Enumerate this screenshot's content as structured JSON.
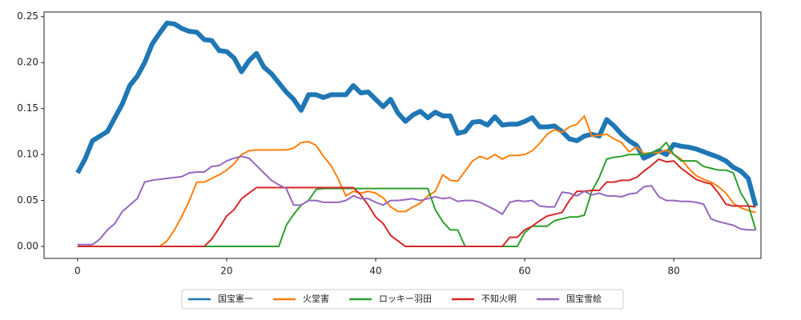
{
  "chart_data": {
    "type": "line",
    "x": [
      0,
      1,
      2,
      3,
      4,
      5,
      6,
      7,
      8,
      9,
      10,
      11,
      12,
      13,
      14,
      15,
      16,
      17,
      18,
      19,
      20,
      21,
      22,
      23,
      24,
      25,
      26,
      27,
      28,
      29,
      30,
      31,
      32,
      33,
      34,
      35,
      36,
      37,
      38,
      39,
      40,
      41,
      42,
      43,
      44,
      45,
      46,
      47,
      48,
      49,
      50,
      51,
      52,
      53,
      54,
      55,
      56,
      57,
      58,
      59,
      60,
      61,
      62,
      63,
      64,
      65,
      66,
      67,
      68,
      69,
      70,
      71,
      72,
      73,
      74,
      75,
      76,
      77,
      78,
      79,
      80,
      81,
      82,
      83,
      84,
      85,
      86,
      87,
      88,
      89,
      90,
      91
    ],
    "series": [
      {
        "name": "国宝憲一",
        "color": "#1f77b4",
        "linewidth": 6,
        "values": [
          0.08,
          0.095,
          0.115,
          0.12,
          0.125,
          0.14,
          0.155,
          0.175,
          0.185,
          0.2,
          0.22,
          0.232,
          0.243,
          0.242,
          0.237,
          0.234,
          0.233,
          0.225,
          0.224,
          0.213,
          0.212,
          0.205,
          0.19,
          0.202,
          0.21,
          0.195,
          0.188,
          0.178,
          0.168,
          0.16,
          0.148,
          0.165,
          0.165,
          0.162,
          0.165,
          0.165,
          0.165,
          0.175,
          0.167,
          0.168,
          0.16,
          0.152,
          0.16,
          0.145,
          0.136,
          0.143,
          0.147,
          0.14,
          0.146,
          0.142,
          0.142,
          0.123,
          0.125,
          0.135,
          0.136,
          0.132,
          0.141,
          0.132,
          0.133,
          0.133,
          0.136,
          0.14,
          0.13,
          0.13,
          0.131,
          0.125,
          0.117,
          0.115,
          0.12,
          0.122,
          0.12,
          0.138,
          0.131,
          0.122,
          0.115,
          0.11,
          0.096,
          0.1,
          0.104,
          0.1,
          0.111,
          0.109,
          0.108,
          0.106,
          0.103,
          0.1,
          0.097,
          0.093,
          0.086,
          0.082,
          0.074,
          0.044
        ]
      },
      {
        "name": "火堂害",
        "color": "#ff7f0e",
        "linewidth": 2,
        "values": [
          0,
          0,
          0,
          0,
          0,
          0,
          0,
          0,
          0,
          0,
          0,
          0,
          0.006,
          0.018,
          0.033,
          0.05,
          0.07,
          0.07,
          0.074,
          0.078,
          0.083,
          0.09,
          0.1,
          0.104,
          0.105,
          0.105,
          0.105,
          0.105,
          0.105,
          0.107,
          0.113,
          0.114,
          0.11,
          0.098,
          0.088,
          0.073,
          0.055,
          0.06,
          0.058,
          0.06,
          0.058,
          0.053,
          0.043,
          0.038,
          0.038,
          0.043,
          0.047,
          0.055,
          0.06,
          0.078,
          0.072,
          0.071,
          0.082,
          0.093,
          0.098,
          0.095,
          0.1,
          0.095,
          0.099,
          0.099,
          0.1,
          0.104,
          0.112,
          0.122,
          0.127,
          0.124,
          0.13,
          0.133,
          0.142,
          0.12,
          0.121,
          0.122,
          0.117,
          0.113,
          0.103,
          0.108,
          0.101,
          0.102,
          0.102,
          0.105,
          0.1,
          0.095,
          0.085,
          0.077,
          0.073,
          0.07,
          0.065,
          0.058,
          0.047,
          0.042,
          0.039,
          0.037
        ]
      },
      {
        "name": "ロッキー羽田",
        "color": "#2ca02c",
        "linewidth": 2,
        "values": [
          0,
          0,
          0,
          0,
          0,
          0,
          0,
          0,
          0,
          0,
          0,
          0,
          0,
          0,
          0,
          0,
          0,
          0,
          0,
          0,
          0,
          0,
          0,
          0,
          0,
          0,
          0,
          0,
          0.023,
          0.035,
          0.045,
          0.05,
          0.062,
          0.063,
          0.063,
          0.063,
          0.063,
          0.063,
          0.063,
          0.063,
          0.063,
          0.063,
          0.063,
          0.063,
          0.063,
          0.063,
          0.063,
          0.063,
          0.04,
          0.027,
          0.018,
          0.018,
          0,
          0,
          0,
          0,
          0,
          0,
          0,
          0,
          0.015,
          0.022,
          0.022,
          0.022,
          0.028,
          0.03,
          0.032,
          0.032,
          0.034,
          0.06,
          0.075,
          0.095,
          0.097,
          0.098,
          0.1,
          0.1,
          0.1,
          0.102,
          0.105,
          0.113,
          0.1,
          0.093,
          0.093,
          0.093,
          0.087,
          0.085,
          0.083,
          0.083,
          0.08,
          0.058,
          0.045,
          0.018
        ]
      },
      {
        "name": "不知火明",
        "color": "#d62728",
        "linewidth": 2,
        "values": [
          0,
          0,
          0,
          0,
          0,
          0,
          0,
          0,
          0,
          0,
          0,
          0,
          0,
          0,
          0,
          0,
          0,
          0,
          0.008,
          0.02,
          0.033,
          0.04,
          0.052,
          0.058,
          0.064,
          0.064,
          0.064,
          0.064,
          0.064,
          0.064,
          0.064,
          0.064,
          0.064,
          0.064,
          0.064,
          0.064,
          0.064,
          0.064,
          0.056,
          0.045,
          0.032,
          0.025,
          0.012,
          0.006,
          0,
          0,
          0,
          0,
          0,
          0,
          0,
          0,
          0,
          0,
          0,
          0,
          0,
          0,
          0.01,
          0.01,
          0.018,
          0.022,
          0.028,
          0.033,
          0.035,
          0.037,
          0.05,
          0.06,
          0.06,
          0.061,
          0.061,
          0.07,
          0.07,
          0.072,
          0.072,
          0.075,
          0.082,
          0.088,
          0.095,
          0.092,
          0.093,
          0.085,
          0.079,
          0.073,
          0.07,
          0.068,
          0.058,
          0.046,
          0.044,
          0.044,
          0.044,
          0.043
        ]
      },
      {
        "name": "国宝雪絵",
        "color": "#9467bd",
        "linewidth": 2,
        "values": [
          0.002,
          0.002,
          0.002,
          0.008,
          0.018,
          0.025,
          0.038,
          0.045,
          0.052,
          0.07,
          0.072,
          0.073,
          0.074,
          0.075,
          0.076,
          0.08,
          0.081,
          0.081,
          0.087,
          0.088,
          0.093,
          0.096,
          0.098,
          0.096,
          0.088,
          0.08,
          0.072,
          0.067,
          0.063,
          0.045,
          0.045,
          0.05,
          0.05,
          0.048,
          0.048,
          0.048,
          0.05,
          0.055,
          0.052,
          0.052,
          0.048,
          0.045,
          0.05,
          0.05,
          0.051,
          0.052,
          0.05,
          0.052,
          0.054,
          0.052,
          0.053,
          0.049,
          0.05,
          0.05,
          0.048,
          0.044,
          0.04,
          0.035,
          0.048,
          0.05,
          0.049,
          0.05,
          0.044,
          0.043,
          0.043,
          0.059,
          0.058,
          0.055,
          0.06,
          0.056,
          0.058,
          0.055,
          0.055,
          0.054,
          0.057,
          0.058,
          0.065,
          0.066,
          0.054,
          0.05,
          0.05,
          0.049,
          0.049,
          0.048,
          0.046,
          0.03,
          0.027,
          0.025,
          0.023,
          0.019,
          0.018,
          0.018
        ]
      }
    ],
    "xlim": [
      -4.5,
      91.7
    ],
    "ylim": [
      -0.013,
      0.255
    ],
    "xticks": [
      0,
      20,
      40,
      60,
      80
    ],
    "yticks": [
      {
        "value": 0,
        "label": "0.00"
      },
      {
        "value": 0.05,
        "label": "0.05"
      },
      {
        "value": 0.1,
        "label": "0.10"
      },
      {
        "value": 0.15,
        "label": "0.15"
      },
      {
        "value": 0.2,
        "label": "0.20"
      },
      {
        "value": 0.25,
        "label": "0.25"
      }
    ],
    "legend": "lower center"
  }
}
